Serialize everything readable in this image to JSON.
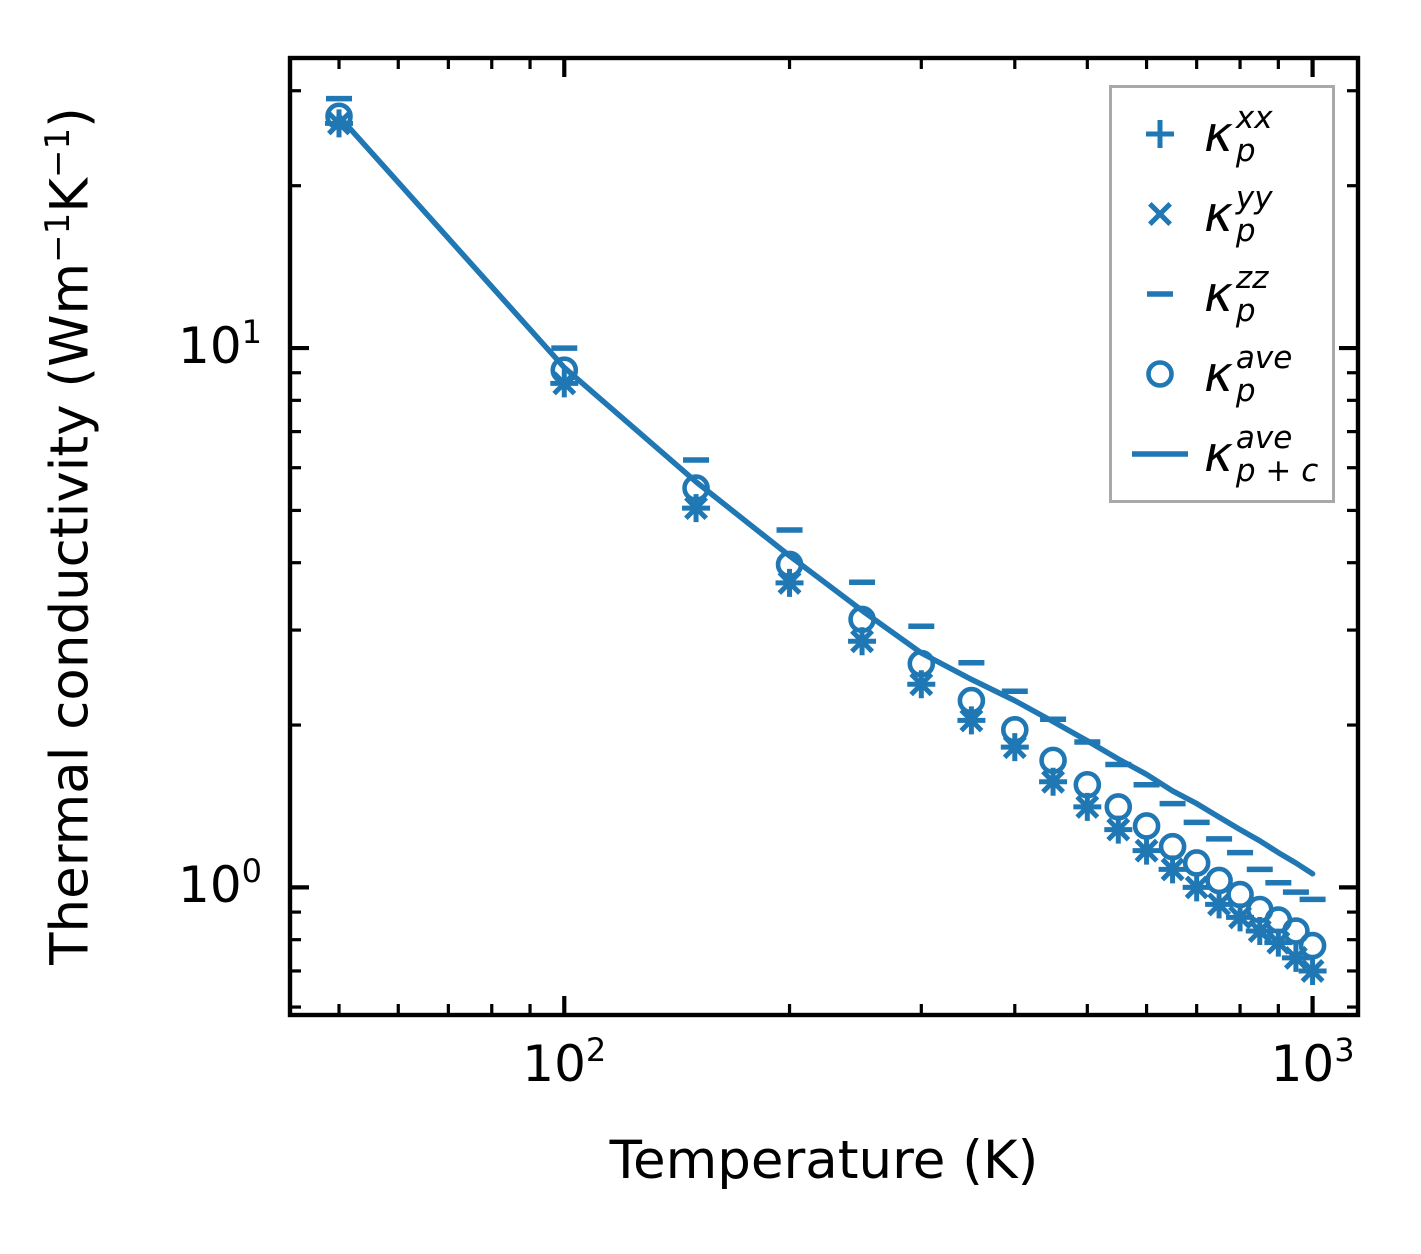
{
  "figure": {
    "background": "#ffffff",
    "ylabel_parts": [
      {
        "text": "Thermal conductivity (Wm"
      },
      {
        "sup": "−1"
      },
      {
        "text": "K"
      },
      {
        "sup": "−1"
      },
      {
        "text": ")"
      }
    ]
  },
  "chart_data": {
    "type": "scatter+line",
    "title": "",
    "xlabel": "Temperature (K)",
    "ylabel": "Thermal conductivity (Wm⁻¹K⁻¹)",
    "xscale": "log",
    "yscale": "log",
    "xlim": [
      43,
      1150
    ],
    "ylim": [
      0.58,
      34.5
    ],
    "grid": false,
    "color": "#1f77b4",
    "x": [
      50,
      100,
      150,
      200,
      250,
      300,
      350,
      400,
      450,
      500,
      550,
      600,
      650,
      700,
      750,
      800,
      850,
      900,
      950,
      1000
    ],
    "series": [
      {
        "name": "kappa-p-xx",
        "marker": "plus",
        "values": [
          26.1,
          8.6,
          5.05,
          3.67,
          2.86,
          2.38,
          2.04,
          1.82,
          1.57,
          1.41,
          1.28,
          1.17,
          1.08,
          1.0,
          0.93,
          0.88,
          0.83,
          0.79,
          0.74,
          0.7
        ]
      },
      {
        "name": "kappa-p-yy",
        "marker": "x",
        "values": [
          26.1,
          8.6,
          5.05,
          3.67,
          2.86,
          2.38,
          2.04,
          1.82,
          1.57,
          1.41,
          1.28,
          1.17,
          1.08,
          1.0,
          0.93,
          0.88,
          0.83,
          0.79,
          0.74,
          0.7
        ]
      },
      {
        "name": "kappa-p-zz",
        "marker": "dash",
        "values": [
          29.0,
          10.0,
          6.2,
          4.6,
          3.68,
          3.05,
          2.61,
          2.31,
          2.05,
          1.86,
          1.69,
          1.55,
          1.43,
          1.32,
          1.23,
          1.16,
          1.08,
          1.02,
          0.98,
          0.95
        ]
      },
      {
        "name": "kappa-p-ave",
        "marker": "circle",
        "values": [
          26.9,
          9.1,
          5.5,
          3.97,
          3.14,
          2.6,
          2.22,
          1.96,
          1.72,
          1.55,
          1.41,
          1.3,
          1.19,
          1.11,
          1.03,
          0.97,
          0.91,
          0.87,
          0.83,
          0.78
        ]
      },
      {
        "name": "kappa-p-plus-c-ave",
        "marker": "line",
        "values": [
          26.9,
          9.2,
          5.65,
          4.12,
          3.26,
          2.72,
          2.43,
          2.22,
          2.03,
          1.87,
          1.73,
          1.62,
          1.51,
          1.43,
          1.35,
          1.28,
          1.22,
          1.16,
          1.11,
          1.06
        ]
      }
    ],
    "x_ticks": {
      "major": [
        {
          "v": 100,
          "base": "10",
          "exp": "2"
        },
        {
          "v": 1000,
          "base": "10",
          "exp": "3"
        }
      ],
      "minor": [
        50,
        60,
        70,
        80,
        90,
        200,
        300,
        400,
        500,
        600,
        700,
        800,
        900
      ]
    },
    "y_ticks": {
      "major": [
        {
          "v": 1,
          "base": "10",
          "exp": "0"
        },
        {
          "v": 10,
          "base": "10",
          "exp": "1"
        }
      ],
      "minor": [
        0.6,
        0.7,
        0.8,
        0.9,
        2,
        3,
        4,
        5,
        6,
        7,
        8,
        9,
        20,
        30
      ]
    },
    "legend": {
      "position": "upper right",
      "items": [
        {
          "id": "kappa-p-xx",
          "marker": "plus",
          "kappa": "κ",
          "sup": "xx",
          "sub": "p"
        },
        {
          "id": "kappa-p-yy",
          "marker": "x",
          "kappa": "κ",
          "sup": "yy",
          "sub": "p"
        },
        {
          "id": "kappa-p-zz",
          "marker": "dash",
          "kappa": "κ",
          "sup": "zz",
          "sub": "p"
        },
        {
          "id": "kappa-p-ave",
          "marker": "circle",
          "kappa": "κ",
          "sup": "ave",
          "sub": "p"
        },
        {
          "id": "kappa-p-plus-c-ave",
          "marker": "line",
          "kappa": "κ",
          "sup": "ave",
          "sub": "p + c"
        }
      ]
    }
  }
}
